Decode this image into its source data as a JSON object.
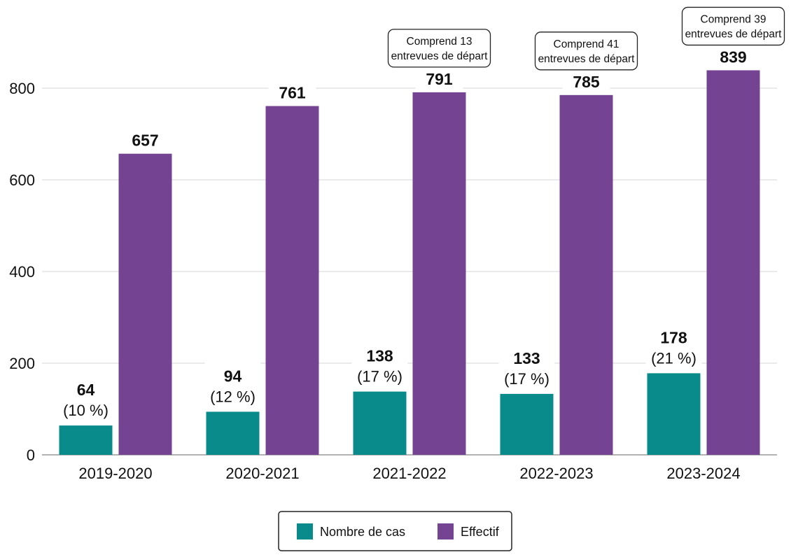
{
  "chart_data": {
    "type": "bar",
    "title": "",
    "xlabel": "",
    "ylabel": "",
    "ylim": [
      0,
      900
    ],
    "yticks": [
      0,
      200,
      400,
      600,
      800
    ],
    "grid": true,
    "legend_position": "bottom-center",
    "categories": [
      "2019-2020",
      "2020-2021",
      "2021-2022",
      "2022-2023",
      "2023-2024"
    ],
    "series": [
      {
        "name": "Nombre de cas",
        "color": "#098b8b",
        "values": [
          64,
          94,
          138,
          133,
          178
        ],
        "value_labels": [
          "64",
          "94",
          "138",
          "133",
          "178"
        ],
        "percent_labels": [
          "(10 %)",
          "(12 %)",
          "(17 %)",
          "(17 %)",
          "(21 %)"
        ]
      },
      {
        "name": "Effectif",
        "color": "#744492",
        "values": [
          657,
          761,
          791,
          785,
          839
        ],
        "value_labels": [
          "657",
          "761",
          "791",
          "785",
          "839"
        ]
      }
    ],
    "annotations": [
      null,
      null,
      {
        "line1": "Comprend 13",
        "line2": "entrevues de départ"
      },
      {
        "line1": "Comprend 41",
        "line2": "entrevues de départ"
      },
      {
        "line1": "Comprend 39",
        "line2": "entrevues de départ"
      }
    ]
  }
}
